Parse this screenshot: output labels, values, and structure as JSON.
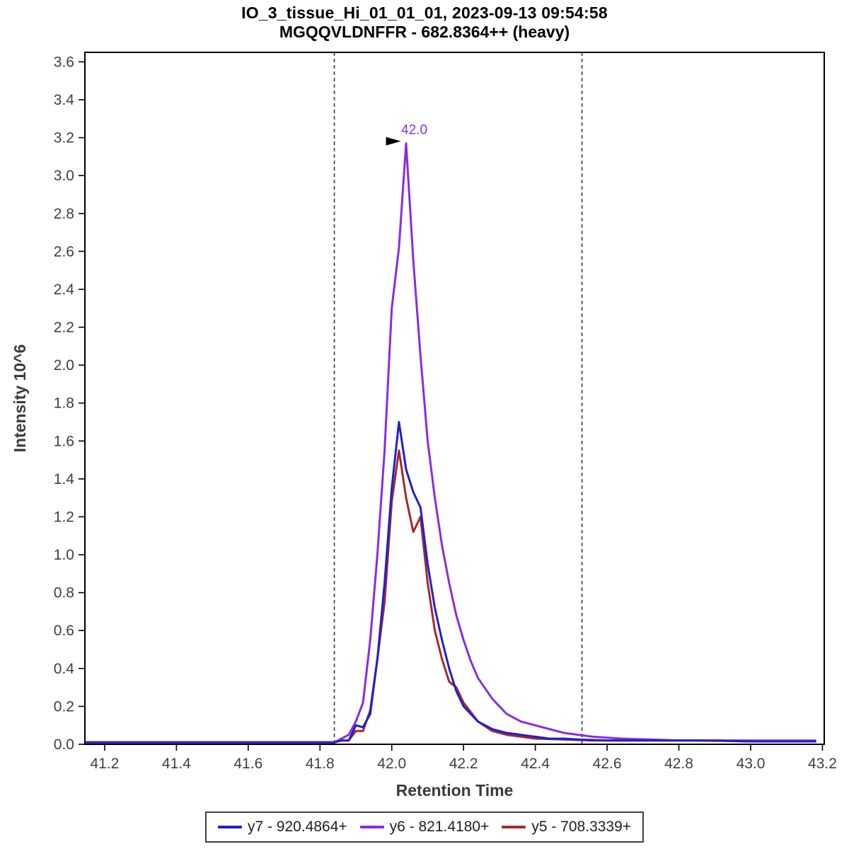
{
  "chart_data": {
    "type": "line",
    "title": "IO_3_tissue_Hi_01_01_01, 2023-09-13 09:54:58",
    "subtitle": "MGQQVLDNFFR - 682.8364++ (heavy)",
    "xlabel": "Retention Time",
    "ylabel": "Intensity 10^6",
    "xlim": [
      41.145,
      43.205
    ],
    "ylim": [
      0,
      3.65
    ],
    "xticks": [
      41.2,
      41.4,
      41.6,
      41.8,
      42.0,
      42.2,
      42.4,
      42.6,
      42.8,
      43.0,
      43.2
    ],
    "yticks": [
      0.0,
      0.2,
      0.4,
      0.6,
      0.8,
      1.0,
      1.2,
      1.4,
      1.6,
      1.8,
      2.0,
      2.2,
      2.4,
      2.6,
      2.8,
      3.0,
      3.2,
      3.4,
      3.6
    ],
    "grid": false,
    "legend_position": "bottom-center",
    "boundaries": {
      "left": 41.84,
      "right": 42.53,
      "style": "dashed",
      "color": "#3c3c3c"
    },
    "annotation": {
      "text": "42.0",
      "x": 42.045,
      "y": 3.17,
      "color": "#8a2be2",
      "arrow": true
    },
    "colors": {
      "plot_border": "#000000",
      "axis_text": "#3f3f3f"
    },
    "draw_order": [
      1,
      2,
      0
    ],
    "series": [
      {
        "id": "y7",
        "name": "y7 - 920.4864+",
        "color": "#2020cc",
        "points": [
          [
            41.15,
            0.01
          ],
          [
            41.25,
            0.01
          ],
          [
            41.35,
            0.01
          ],
          [
            41.45,
            0.01
          ],
          [
            41.55,
            0.01
          ],
          [
            41.65,
            0.01
          ],
          [
            41.75,
            0.01
          ],
          [
            41.84,
            0.01
          ],
          [
            41.86,
            0.02
          ],
          [
            41.88,
            0.02
          ],
          [
            41.9,
            0.1
          ],
          [
            41.92,
            0.09
          ],
          [
            41.94,
            0.16
          ],
          [
            41.96,
            0.45
          ],
          [
            41.98,
            0.85
          ],
          [
            42.0,
            1.35
          ],
          [
            42.02,
            1.7
          ],
          [
            42.04,
            1.45
          ],
          [
            42.06,
            1.33
          ],
          [
            42.08,
            1.25
          ],
          [
            42.1,
            0.95
          ],
          [
            42.12,
            0.72
          ],
          [
            42.14,
            0.55
          ],
          [
            42.16,
            0.4
          ],
          [
            42.18,
            0.28
          ],
          [
            42.2,
            0.2
          ],
          [
            42.24,
            0.12
          ],
          [
            42.28,
            0.08
          ],
          [
            42.32,
            0.06
          ],
          [
            42.36,
            0.05
          ],
          [
            42.4,
            0.04
          ],
          [
            42.44,
            0.03
          ],
          [
            42.48,
            0.03
          ],
          [
            42.52,
            0.025
          ],
          [
            42.6,
            0.02
          ],
          [
            42.7,
            0.02
          ],
          [
            42.8,
            0.02
          ],
          [
            42.9,
            0.02
          ],
          [
            43.0,
            0.015
          ],
          [
            43.1,
            0.015
          ],
          [
            43.18,
            0.015
          ]
        ]
      },
      {
        "id": "y6",
        "name": "y6 - 821.4180+",
        "color": "#8a2be2",
        "points": [
          [
            41.15,
            0.01
          ],
          [
            41.25,
            0.01
          ],
          [
            41.35,
            0.01
          ],
          [
            41.45,
            0.01
          ],
          [
            41.55,
            0.01
          ],
          [
            41.65,
            0.01
          ],
          [
            41.75,
            0.01
          ],
          [
            41.84,
            0.01
          ],
          [
            41.86,
            0.03
          ],
          [
            41.88,
            0.05
          ],
          [
            41.9,
            0.12
          ],
          [
            41.92,
            0.22
          ],
          [
            41.94,
            0.55
          ],
          [
            41.96,
            1.0
          ],
          [
            41.98,
            1.55
          ],
          [
            42.0,
            2.3
          ],
          [
            42.02,
            2.62
          ],
          [
            42.04,
            3.17
          ],
          [
            42.06,
            2.55
          ],
          [
            42.08,
            2.05
          ],
          [
            42.1,
            1.6
          ],
          [
            42.12,
            1.3
          ],
          [
            42.14,
            1.05
          ],
          [
            42.16,
            0.85
          ],
          [
            42.18,
            0.68
          ],
          [
            42.2,
            0.55
          ],
          [
            42.22,
            0.44
          ],
          [
            42.24,
            0.35
          ],
          [
            42.28,
            0.24
          ],
          [
            42.32,
            0.16
          ],
          [
            42.36,
            0.12
          ],
          [
            42.4,
            0.1
          ],
          [
            42.44,
            0.08
          ],
          [
            42.48,
            0.06
          ],
          [
            42.52,
            0.05
          ],
          [
            42.56,
            0.04
          ],
          [
            42.64,
            0.03
          ],
          [
            42.72,
            0.025
          ],
          [
            42.8,
            0.02
          ],
          [
            42.9,
            0.02
          ],
          [
            43.0,
            0.02
          ],
          [
            43.1,
            0.02
          ],
          [
            43.18,
            0.02
          ]
        ]
      },
      {
        "id": "y5",
        "name": "y5 - 708.3339+",
        "color": "#a52a2a",
        "points": [
          [
            41.15,
            0.01
          ],
          [
            41.25,
            0.01
          ],
          [
            41.35,
            0.01
          ],
          [
            41.45,
            0.01
          ],
          [
            41.55,
            0.01
          ],
          [
            41.65,
            0.01
          ],
          [
            41.75,
            0.01
          ],
          [
            41.84,
            0.01
          ],
          [
            41.86,
            0.02
          ],
          [
            41.88,
            0.02
          ],
          [
            41.9,
            0.07
          ],
          [
            41.92,
            0.07
          ],
          [
            41.94,
            0.18
          ],
          [
            41.96,
            0.45
          ],
          [
            41.98,
            0.75
          ],
          [
            42.0,
            1.28
          ],
          [
            42.02,
            1.55
          ],
          [
            42.04,
            1.3
          ],
          [
            42.06,
            1.12
          ],
          [
            42.08,
            1.2
          ],
          [
            42.1,
            0.85
          ],
          [
            42.12,
            0.6
          ],
          [
            42.14,
            0.45
          ],
          [
            42.16,
            0.33
          ],
          [
            42.18,
            0.3
          ],
          [
            42.2,
            0.22
          ],
          [
            42.24,
            0.12
          ],
          [
            42.28,
            0.07
          ],
          [
            42.32,
            0.05
          ],
          [
            42.36,
            0.04
          ],
          [
            42.4,
            0.03
          ],
          [
            42.48,
            0.025
          ],
          [
            42.56,
            0.02
          ],
          [
            42.7,
            0.02
          ],
          [
            42.85,
            0.02
          ],
          [
            43.0,
            0.015
          ],
          [
            43.18,
            0.015
          ]
        ]
      }
    ]
  }
}
